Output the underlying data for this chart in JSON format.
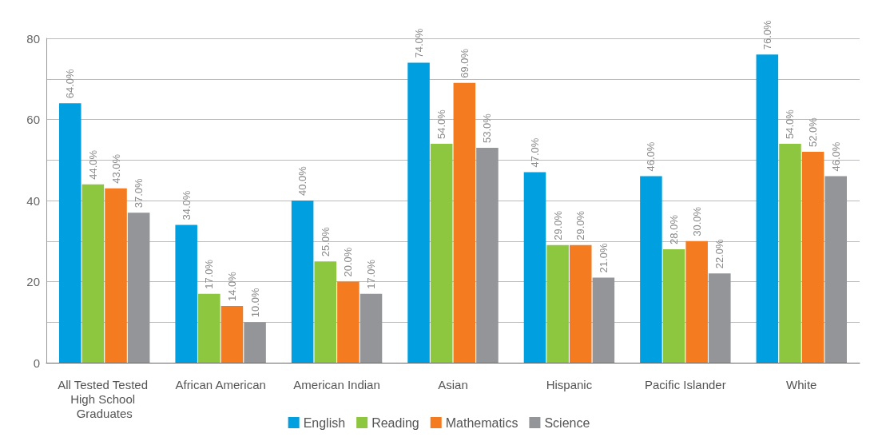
{
  "chart_data": {
    "type": "bar",
    "categories": [
      "All Tested Tested High School Graduates",
      "African American",
      "American Indian",
      "Asian",
      "Hispanic",
      "Pacific Islander",
      "White"
    ],
    "series": [
      {
        "name": "English",
        "color": "#009fdf",
        "values": [
          64,
          34,
          40,
          74,
          47,
          46,
          76
        ],
        "value_labels": [
          "64.0%",
          "34.0%",
          "40.0%",
          "74.0%",
          "47.0%",
          "46.0%",
          "76.0%"
        ]
      },
      {
        "name": "Reading",
        "color": "#8dc63f",
        "values": [
          44,
          17,
          25,
          54,
          29,
          28,
          54
        ],
        "value_labels": [
          "44.0%",
          "17.0%",
          "25.0%",
          "54.0%",
          "29.0%",
          "28.0%",
          "54.0%"
        ]
      },
      {
        "name": "Mathematics",
        "color": "#f47b20",
        "values": [
          43,
          14,
          20,
          69,
          29,
          30,
          52
        ],
        "value_labels": [
          "43.0%",
          "14.0%",
          "20.0%",
          "69.0%",
          "29.0%",
          "30.0%",
          "52.0%"
        ]
      },
      {
        "name": "Science",
        "color": "#939598",
        "values": [
          37,
          10,
          17,
          53,
          21,
          22,
          46
        ],
        "value_labels": [
          "37.0%",
          "10.0%",
          "17.0%",
          "53.0%",
          "21.0%",
          "22.0%",
          "46.0%"
        ]
      }
    ],
    "ylim": [
      0,
      80
    ],
    "yticks": [
      0,
      {
        "value": 10,
        "label": null
      },
      20,
      {
        "value": 30,
        "label": null
      },
      40,
      {
        "value": 50,
        "label": null
      },
      60,
      {
        "value": 70,
        "label": null
      },
      80
    ],
    "grid": "y",
    "legend": "bottom"
  }
}
